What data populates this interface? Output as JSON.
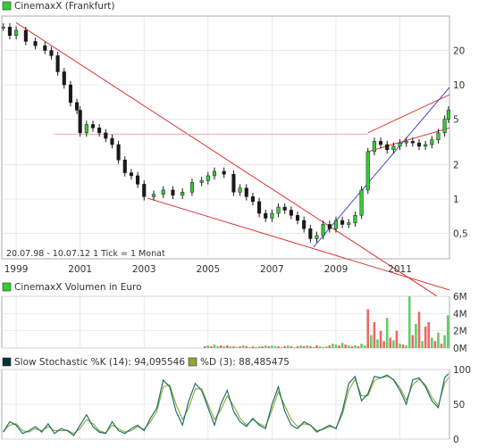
{
  "chart_data": [
    {
      "type": "line",
      "title": "CinemaxX (Frankfurt)",
      "legend_color": "#33cc33",
      "info": "20.07.98 - 10.07.12  1 Tick = 1 Monat",
      "x_tick_labels": [
        "1999",
        "2001",
        "2003",
        "2005",
        "2007",
        "2009",
        "2011"
      ],
      "x_range": [
        1998.55,
        2012.55
      ],
      "y_scale": "log",
      "y_range": [
        0.3,
        40
      ],
      "y_tick_labels": [
        {
          "value": 0.5,
          "label": "0,5"
        },
        {
          "value": 1,
          "label": "1"
        },
        {
          "value": 2,
          "label": "2"
        },
        {
          "value": 5,
          "label": "5"
        },
        {
          "value": 10,
          "label": "10"
        },
        {
          "value": 20,
          "label": "20"
        }
      ],
      "grid": true,
      "price_series": {
        "name": "CinemaxX",
        "x": [
          1998.6,
          1998.8,
          1999.0,
          1999.3,
          1999.6,
          1999.9,
          2000.1,
          2000.3,
          2000.5,
          2000.7,
          2000.9,
          2001.0,
          2001.2,
          2001.4,
          2001.6,
          2001.8,
          2002.0,
          2002.2,
          2002.4,
          2002.6,
          2002.8,
          2003.0,
          2003.3,
          2003.6,
          2003.9,
          2004.2,
          2004.5,
          2004.8,
          2005.0,
          2005.2,
          2005.5,
          2005.8,
          2006.0,
          2006.2,
          2006.4,
          2006.6,
          2006.8,
          2007.0,
          2007.2,
          2007.4,
          2007.6,
          2007.8,
          2008.0,
          2008.2,
          2008.4,
          2008.6,
          2008.8,
          2009.0,
          2009.2,
          2009.4,
          2009.6,
          2009.8,
          2010.0,
          2010.2,
          2010.4,
          2010.6,
          2010.8,
          2011.0,
          2011.2,
          2011.4,
          2011.6,
          2011.8,
          2012.0,
          2012.2,
          2012.4,
          2012.52
        ],
        "y": [
          32,
          27,
          30,
          24,
          22,
          20,
          18,
          13,
          10,
          7,
          6,
          3.8,
          4.5,
          4.2,
          3.8,
          3.4,
          3,
          2.2,
          1.7,
          1.6,
          1.35,
          1.05,
          1.1,
          1.2,
          1.08,
          1.15,
          1.4,
          1.45,
          1.6,
          1.75,
          1.65,
          1.15,
          1.25,
          1.05,
          0.95,
          0.75,
          0.68,
          0.75,
          0.85,
          0.8,
          0.72,
          0.65,
          0.55,
          0.45,
          0.48,
          0.6,
          0.55,
          0.65,
          0.6,
          0.62,
          0.72,
          1.2,
          2.6,
          3.2,
          3,
          2.7,
          2.9,
          3.1,
          3.2,
          3.1,
          2.9,
          3.0,
          3.3,
          3.8,
          5.0,
          6.0
        ]
      },
      "trend_lines": [
        {
          "color": "#dd2222",
          "x": [
            1999.0,
            2012.55
          ],
          "y": [
            35.0,
            0.12
          ]
        },
        {
          "color": "#dd2222",
          "x": [
            2003.1,
            2012.55
          ],
          "y": [
            1.02,
            0.16
          ]
        },
        {
          "color": "#dd2222",
          "x": [
            2010.0,
            2012.55
          ],
          "y": [
            2.6,
            4.2
          ]
        },
        {
          "color": "#dd2222",
          "x": [
            2010.0,
            2012.55
          ],
          "y": [
            3.8,
            8.2
          ]
        },
        {
          "color": "#3333cc",
          "x": [
            2008.3,
            2012.55
          ],
          "y": [
            0.38,
            9.5
          ]
        },
        {
          "color": "#ee9999",
          "x": [
            2000.2,
            2010.0
          ],
          "y": [
            3.7,
            3.7
          ]
        }
      ]
    },
    {
      "type": "bar",
      "title": "CinemaxX Volumen in Euro",
      "legend_color": "#33cc33",
      "x_range": [
        1998.55,
        2012.55
      ],
      "y_range": [
        0,
        6
      ],
      "y_tick_labels": [
        "0M",
        "2M",
        "4M",
        "6M"
      ],
      "grid": true,
      "up_color": "#66cc66",
      "down_color": "#ee6666",
      "bars": {
        "x": [
          2004.9,
          2005.0,
          2005.1,
          2005.2,
          2005.3,
          2005.4,
          2005.5,
          2005.6,
          2005.7,
          2005.8,
          2005.9,
          2006.0,
          2006.1,
          2006.2,
          2006.3,
          2006.4,
          2006.5,
          2006.6,
          2006.7,
          2006.8,
          2006.9,
          2007.0,
          2007.1,
          2007.2,
          2007.3,
          2007.4,
          2007.5,
          2007.6,
          2007.7,
          2007.8,
          2007.9,
          2008.0,
          2008.1,
          2008.2,
          2008.3,
          2008.4,
          2008.5,
          2008.6,
          2008.7,
          2008.8,
          2008.9,
          2009.0,
          2009.1,
          2009.2,
          2009.3,
          2009.4,
          2009.5,
          2009.6,
          2009.7,
          2009.8,
          2009.9,
          2010.0,
          2010.1,
          2010.2,
          2010.3,
          2010.4,
          2010.5,
          2010.6,
          2010.7,
          2010.8,
          2010.9,
          2011.0,
          2011.1,
          2011.2,
          2011.3,
          2011.4,
          2011.5,
          2011.6,
          2011.7,
          2011.8,
          2011.9,
          2012.0,
          2012.1,
          2012.2,
          2012.3,
          2012.4,
          2012.5
        ],
        "values": [
          0.2,
          0.3,
          0.2,
          0.4,
          0.2,
          0.3,
          0.2,
          0.3,
          0.2,
          0.2,
          0.1,
          0.2,
          0.3,
          0.2,
          0.1,
          0.2,
          0.1,
          0.2,
          0.2,
          0.3,
          0.2,
          0.3,
          0.2,
          0.2,
          0.1,
          0.2,
          0.3,
          0.2,
          0.1,
          0.2,
          0.3,
          0.2,
          0.3,
          0.2,
          0.1,
          0.3,
          0.2,
          0.1,
          0.2,
          0.3,
          0.5,
          0.4,
          0.3,
          0.6,
          0.4,
          0.3,
          0.2,
          0.3,
          0.2,
          0.5,
          0.3,
          4.5,
          1.5,
          3.0,
          1.0,
          2.0,
          0.8,
          3.5,
          1.2,
          0.9,
          2.0,
          0.5,
          0.4,
          0.3,
          6.0,
          1.5,
          2.8,
          4.2,
          0.8,
          2.5,
          3.0,
          1.2,
          0.8,
          1.8,
          0.5,
          1.5,
          3.8
        ],
        "direction": [
          "d",
          "u",
          "d",
          "u",
          "u",
          "d",
          "u",
          "d",
          "u",
          "d",
          "u",
          "d",
          "u",
          "d",
          "u",
          "d",
          "d",
          "u",
          "d",
          "u",
          "d",
          "u",
          "u",
          "d",
          "u",
          "d",
          "u",
          "d",
          "u",
          "d",
          "u",
          "d",
          "u",
          "d",
          "u",
          "d",
          "u",
          "d",
          "u",
          "d",
          "u",
          "u",
          "d",
          "u",
          "d",
          "u",
          "d",
          "u",
          "d",
          "u",
          "u",
          "d",
          "u",
          "d",
          "u",
          "d",
          "d",
          "u",
          "d",
          "u",
          "d",
          "u",
          "d",
          "u",
          "u",
          "d",
          "u",
          "d",
          "u",
          "d",
          "d",
          "u",
          "d",
          "u",
          "d",
          "u",
          "u"
        ]
      }
    },
    {
      "type": "line",
      "title": "Slow Stochastic %K (14): 94,095546",
      "legend_color": "#003333",
      "x_range": [
        1998.55,
        2012.55
      ],
      "y_range": [
        0,
        100
      ],
      "y_tick_labels": [
        "0",
        "50",
        "100"
      ],
      "grid": true,
      "series": [
        {
          "name": "Slow Stochastic %K (14): 94,095546",
          "color": "#116666",
          "x": [
            1998.6,
            1998.8,
            1999.0,
            1999.2,
            1999.4,
            1999.6,
            1999.8,
            2000.0,
            2000.2,
            2000.4,
            2000.6,
            2000.8,
            2001.0,
            2001.2,
            2001.4,
            2001.6,
            2001.8,
            2002.0,
            2002.2,
            2002.4,
            2002.6,
            2002.8,
            2003.0,
            2003.2,
            2003.4,
            2003.6,
            2003.8,
            2004.0,
            2004.2,
            2004.4,
            2004.6,
            2004.8,
            2005.0,
            2005.2,
            2005.4,
            2005.6,
            2005.8,
            2006.0,
            2006.2,
            2006.4,
            2006.6,
            2006.8,
            2007.0,
            2007.2,
            2007.4,
            2007.6,
            2007.8,
            2008.0,
            2008.2,
            2008.4,
            2008.6,
            2008.8,
            2009.0,
            2009.2,
            2009.4,
            2009.6,
            2009.8,
            2010.0,
            2010.2,
            2010.4,
            2010.6,
            2010.8,
            2011.0,
            2011.2,
            2011.4,
            2011.6,
            2011.8,
            2012.0,
            2012.2,
            2012.4,
            2012.52
          ],
          "y": [
            10,
            25,
            20,
            8,
            12,
            18,
            10,
            22,
            8,
            15,
            12,
            5,
            20,
            35,
            18,
            10,
            8,
            25,
            12,
            8,
            15,
            20,
            12,
            30,
            45,
            85,
            75,
            40,
            20,
            55,
            80,
            70,
            45,
            20,
            50,
            70,
            40,
            25,
            18,
            30,
            20,
            15,
            50,
            75,
            40,
            20,
            15,
            25,
            20,
            10,
            15,
            20,
            15,
            40,
            80,
            90,
            55,
            65,
            90,
            88,
            92,
            85,
            70,
            50,
            85,
            88,
            75,
            55,
            45,
            88,
            94.1
          ]
        },
        {
          "name": "%D (3): 88,485475",
          "color": "#88aa33",
          "x": [
            1998.6,
            1998.8,
            1999.0,
            1999.2,
            1999.4,
            1999.6,
            1999.8,
            2000.0,
            2000.2,
            2000.4,
            2000.6,
            2000.8,
            2001.0,
            2001.2,
            2001.4,
            2001.6,
            2001.8,
            2002.0,
            2002.2,
            2002.4,
            2002.6,
            2002.8,
            2003.0,
            2003.2,
            2003.4,
            2003.6,
            2003.8,
            2004.0,
            2004.2,
            2004.4,
            2004.6,
            2004.8,
            2005.0,
            2005.2,
            2005.4,
            2005.6,
            2005.8,
            2006.0,
            2006.2,
            2006.4,
            2006.6,
            2006.8,
            2007.0,
            2007.2,
            2007.4,
            2007.6,
            2007.8,
            2008.0,
            2008.2,
            2008.4,
            2008.6,
            2008.8,
            2009.0,
            2009.2,
            2009.4,
            2009.6,
            2009.8,
            2010.0,
            2010.2,
            2010.4,
            2010.6,
            2010.8,
            2011.0,
            2011.2,
            2011.4,
            2011.6,
            2011.8,
            2012.0,
            2012.2,
            2012.4,
            2012.52
          ],
          "y": [
            12,
            20,
            22,
            12,
            10,
            15,
            12,
            18,
            12,
            12,
            13,
            8,
            15,
            28,
            22,
            12,
            9,
            20,
            15,
            10,
            12,
            18,
            14,
            25,
            40,
            75,
            78,
            50,
            28,
            45,
            72,
            72,
            50,
            28,
            42,
            62,
            48,
            30,
            20,
            28,
            22,
            18,
            42,
            68,
            48,
            28,
            18,
            22,
            20,
            12,
            14,
            18,
            16,
            35,
            70,
            86,
            62,
            62,
            84,
            88,
            90,
            86,
            74,
            56,
            78,
            86,
            78,
            60,
            48,
            80,
            88.5
          ]
        }
      ]
    }
  ]
}
